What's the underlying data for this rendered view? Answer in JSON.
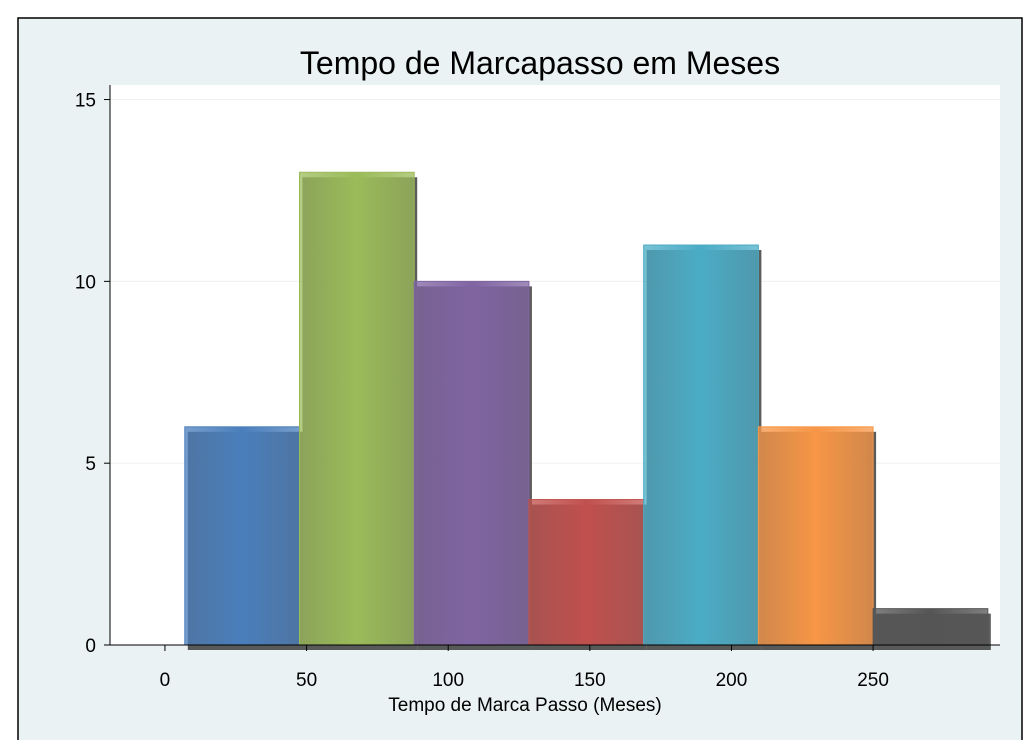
{
  "chart_data": {
    "type": "histogram",
    "title": "Tempo de Marcapasso em Meses",
    "x_label": "Tempo de Marca Passo (Meses)",
    "bins": [
      7,
      47.5,
      88,
      128.5,
      169,
      209.5,
      250,
      290.5
    ],
    "values": [
      6,
      13,
      10,
      4,
      11,
      6,
      1
    ],
    "colors": [
      "#4a7ebb",
      "#9bbb59",
      "#8064a2",
      "#c0504d",
      "#4bacc6",
      "#f79646",
      "#555555"
    ],
    "xlim": [
      -19.4,
      294.8
    ],
    "xticks": [
      0,
      50,
      100,
      150,
      200,
      250
    ],
    "ylim": [
      0,
      15.4
    ],
    "yticks": [
      0,
      5,
      10,
      15
    ],
    "grid": true
  }
}
